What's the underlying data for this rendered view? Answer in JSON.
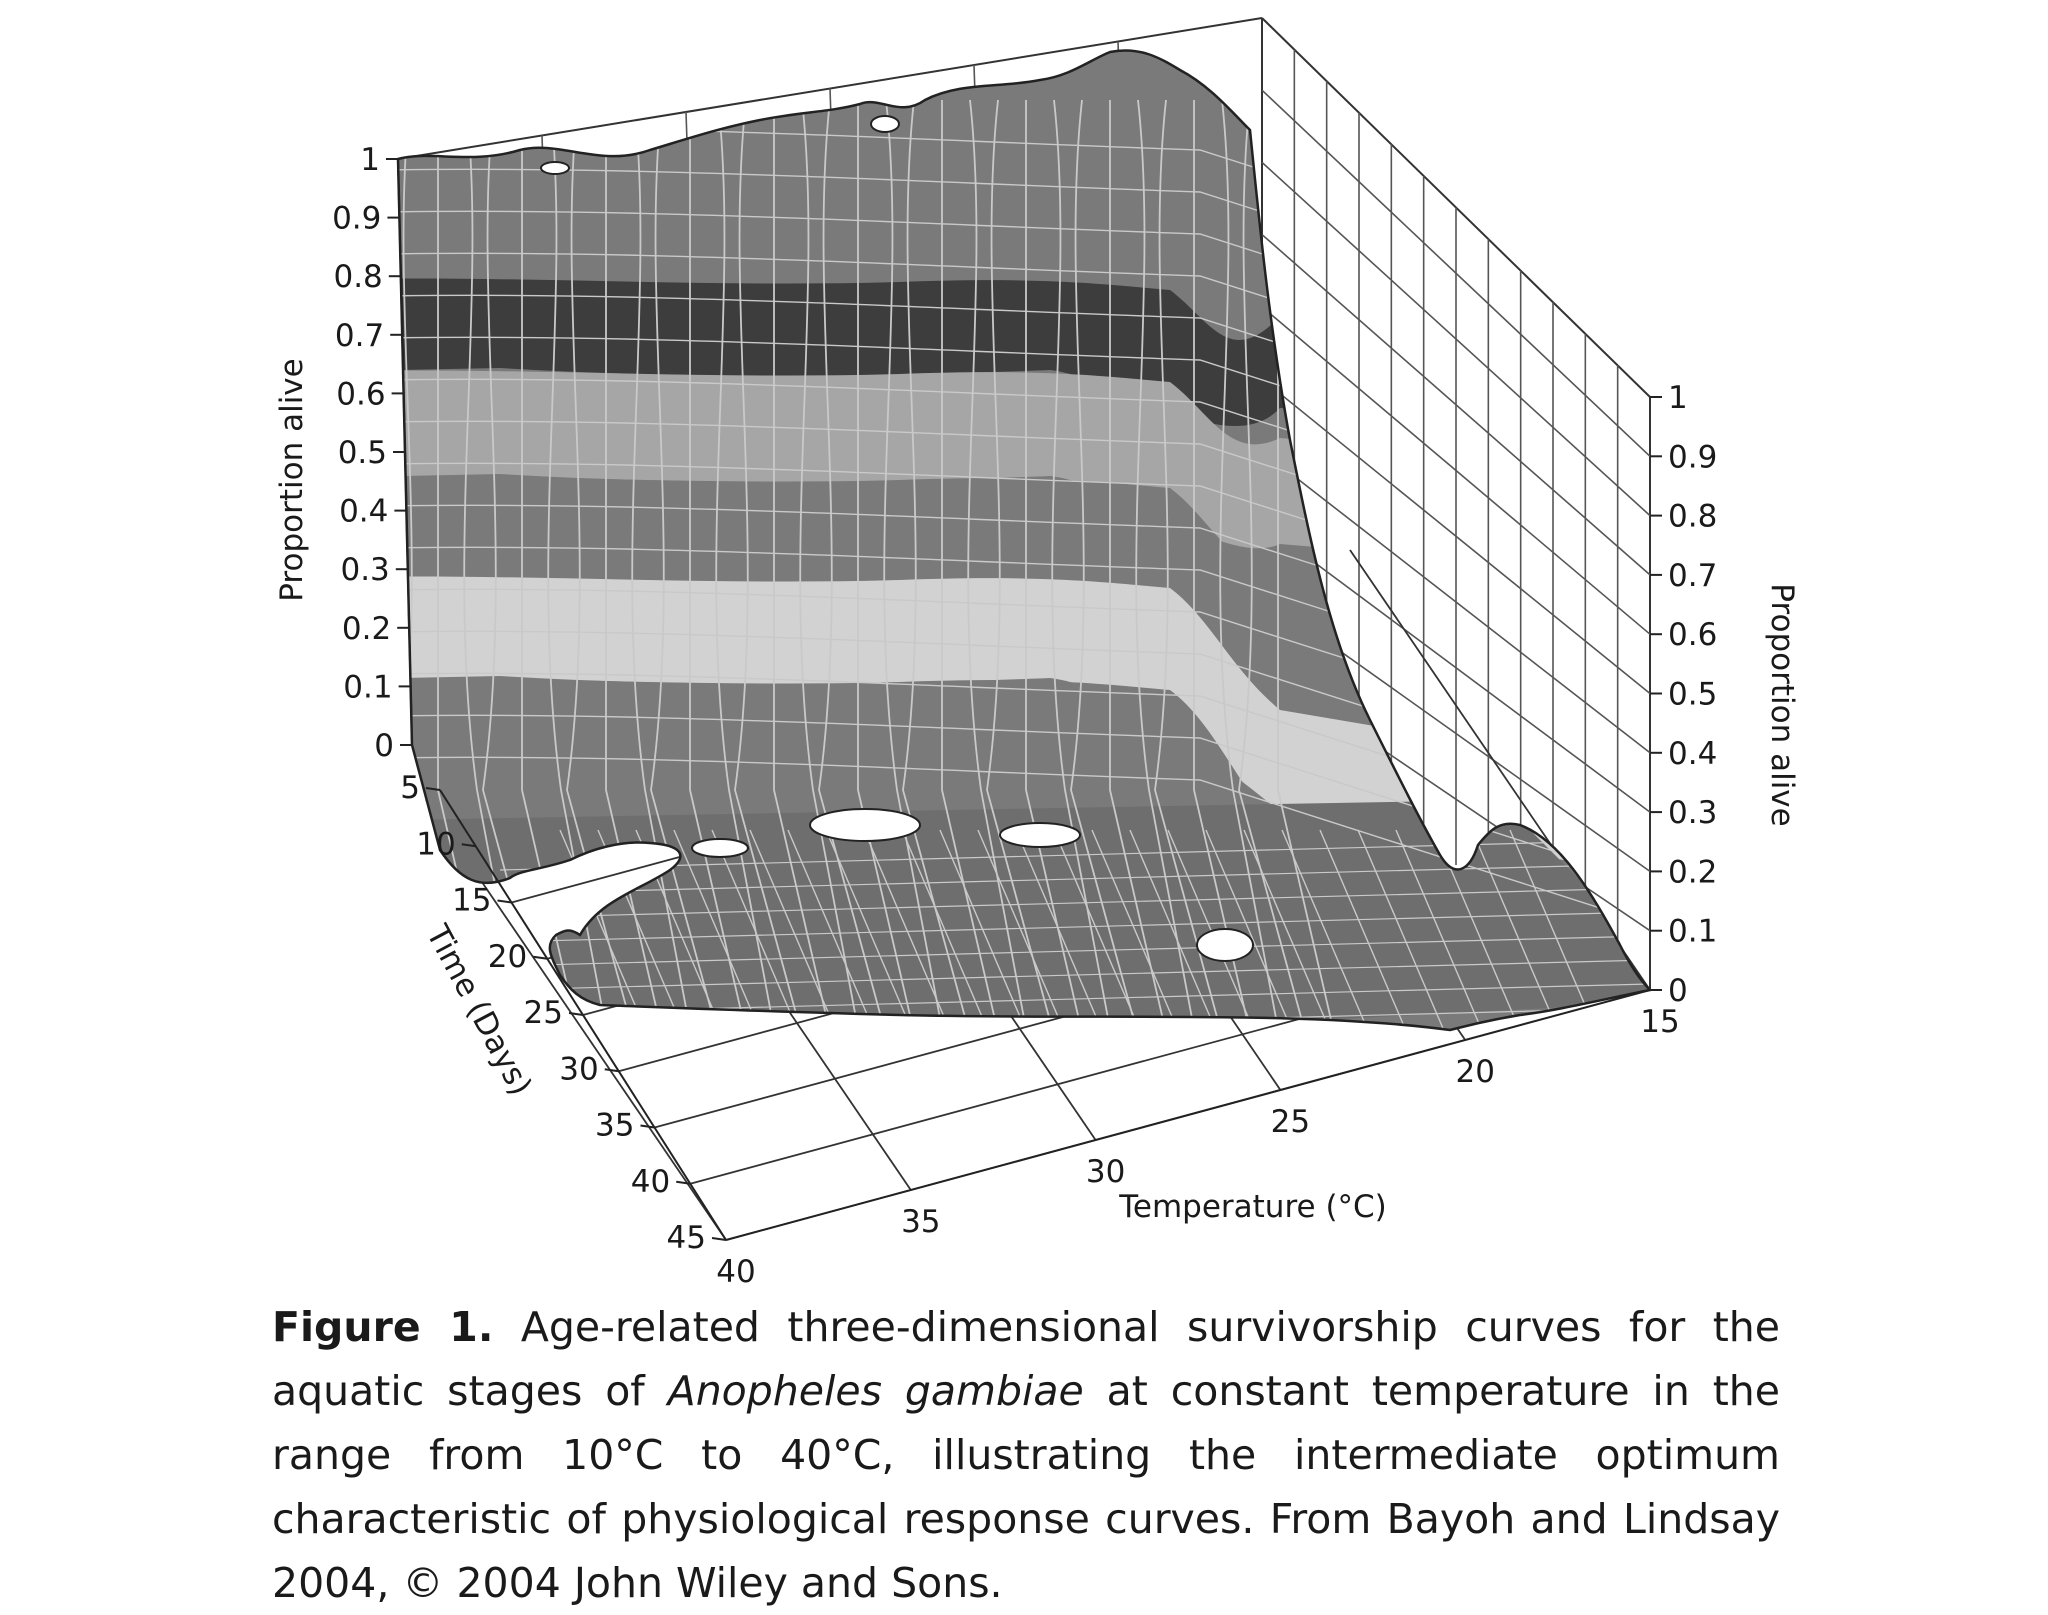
{
  "chart_data": {
    "type": "surface3d",
    "axes": {
      "z_left": {
        "title": "Proportion alive",
        "ticks": [
          "1",
          "0.9",
          "0.8",
          "0.7",
          "0.6",
          "0.5",
          "0.4",
          "0.3",
          "0.2",
          "0.1",
          "0"
        ],
        "range": [
          0,
          1
        ]
      },
      "z_right": {
        "title": "Proportion alive",
        "ticks": [
          "1",
          "0.9",
          "0.8",
          "0.7",
          "0.6",
          "0.5",
          "0.4",
          "0.3",
          "0.2",
          "0.1",
          "0"
        ],
        "range": [
          0,
          1
        ]
      },
      "time": {
        "title": "Time (Days)",
        "ticks": [
          "5",
          "10",
          "15",
          "20",
          "25",
          "30",
          "35",
          "40",
          "45"
        ],
        "range": [
          5,
          45
        ]
      },
      "temperature": {
        "title": "Temperature (°C)",
        "ticks": [
          "40",
          "35",
          "30",
          "25",
          "20",
          "15"
        ],
        "range": [
          15,
          40
        ]
      }
    },
    "grid": true,
    "colors": {
      "band_dark": "#3d3d3d",
      "band_mid": "#7a7a7a",
      "band_light": "#a6a6a6",
      "band_lightest": "#d2d2d2",
      "mesh": "#c9c9c9"
    }
  },
  "caption": {
    "label": "Figure 1.",
    "text_1": " Age-related three-dimensional survivorship curves for the aquatic stages of ",
    "species": "Anopheles gambiae",
    "text_2": " at constant temperature in the range from 10°C to 40°C, illustrating the intermediate optimum characteristic of physiological response curves. From Bayoh and Lindsay 2004, © 2004 John Wiley and Sons."
  }
}
